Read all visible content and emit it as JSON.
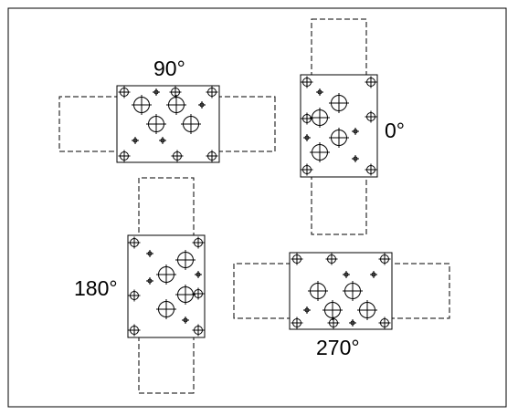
{
  "labels": {
    "deg0": "0°",
    "deg90": "90°",
    "deg180": "180°",
    "deg270": "270°"
  },
  "colors": {
    "line": "#000000",
    "background": "#ffffff"
  }
}
